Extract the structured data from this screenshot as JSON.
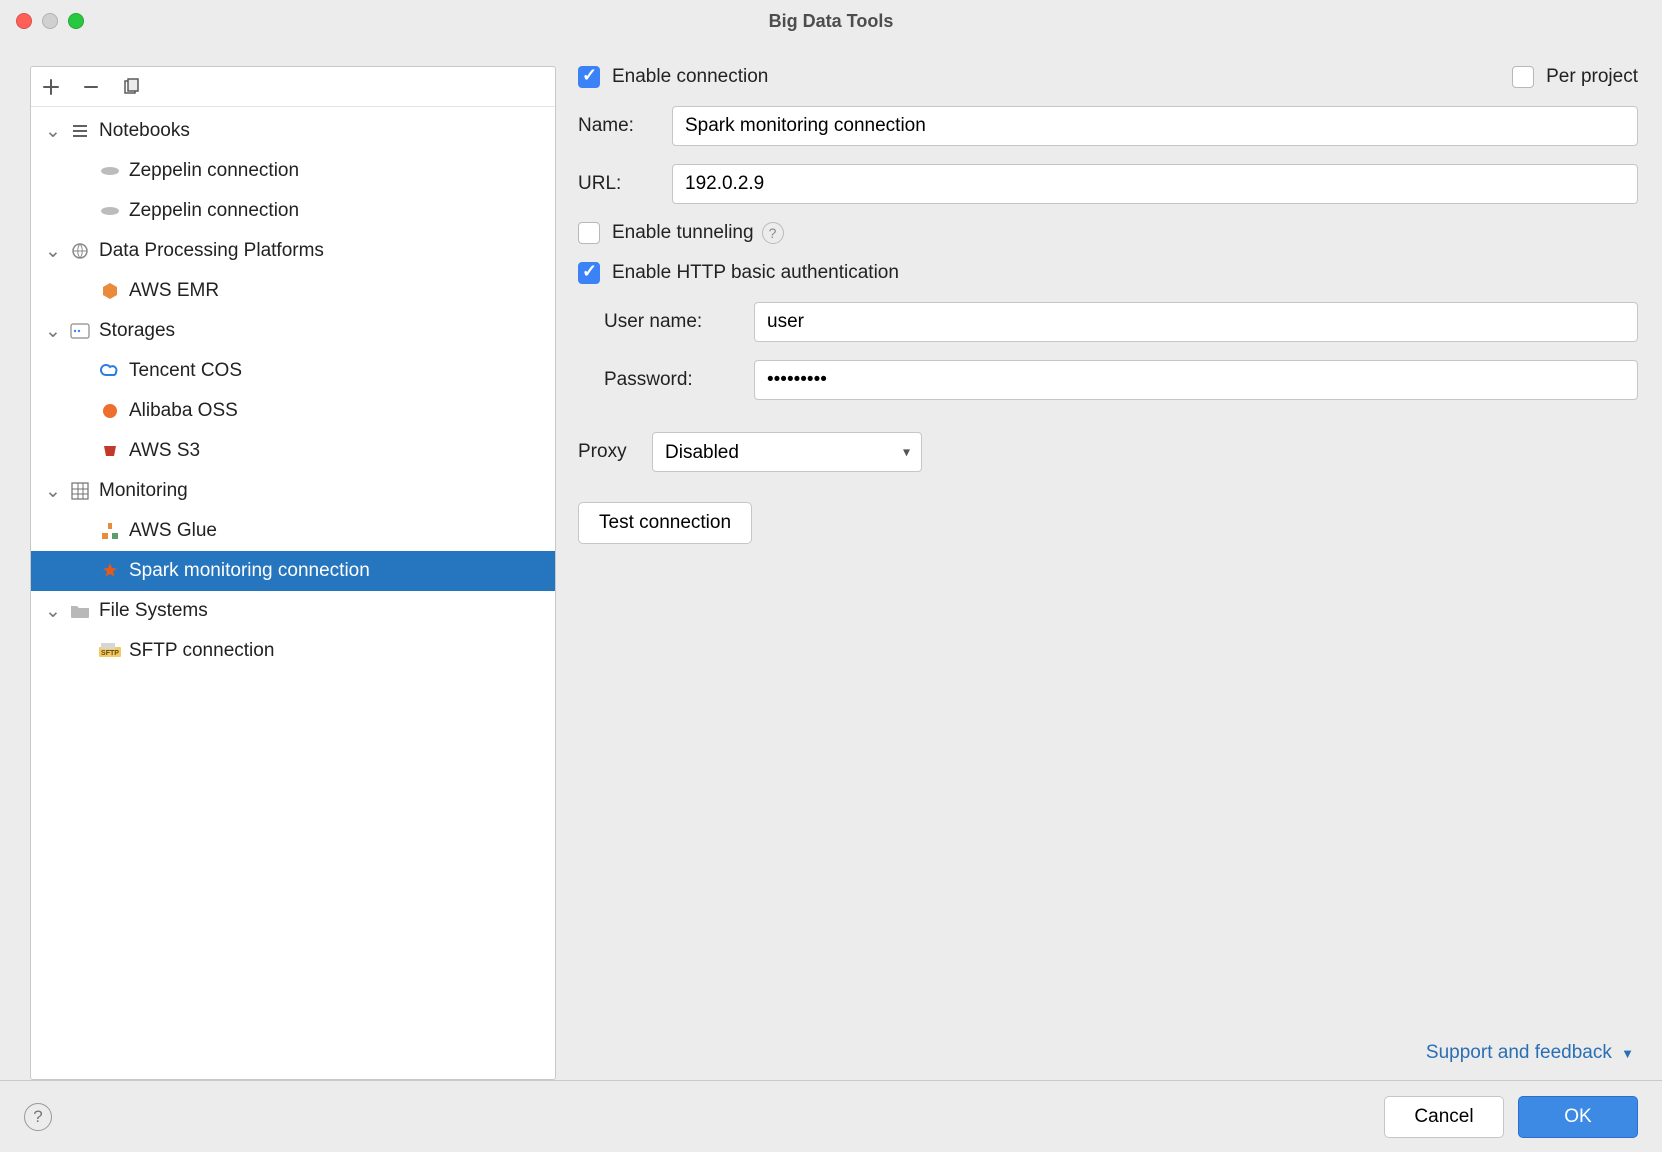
{
  "window": {
    "title": "Big Data Tools"
  },
  "colors": {
    "selection": "#2675bf",
    "accent": "#3d8ae5",
    "link": "#2a6fb5",
    "border": "#c6c6c6",
    "bg": "#ececec"
  },
  "sidebar": {
    "groups": [
      {
        "label": "Notebooks",
        "icon": "lines",
        "items": [
          {
            "label": "Zeppelin connection",
            "icon": "zeppelin"
          },
          {
            "label": "Zeppelin connection",
            "icon": "zeppelin"
          }
        ]
      },
      {
        "label": "Data Processing Platforms",
        "icon": "globe",
        "items": [
          {
            "label": "AWS EMR",
            "icon": "emr"
          }
        ]
      },
      {
        "label": "Storages",
        "icon": "storage",
        "items": [
          {
            "label": "Tencent COS",
            "icon": "cos"
          },
          {
            "label": "Alibaba OSS",
            "icon": "oss"
          },
          {
            "label": "AWS S3",
            "icon": "s3"
          }
        ]
      },
      {
        "label": "Monitoring",
        "icon": "grid",
        "items": [
          {
            "label": "AWS Glue",
            "icon": "glue"
          },
          {
            "label": "Spark monitoring connection",
            "icon": "spark",
            "selected": true
          }
        ]
      },
      {
        "label": "File Systems",
        "icon": "folder",
        "items": [
          {
            "label": "SFTP connection",
            "icon": "sftp"
          }
        ]
      }
    ]
  },
  "form": {
    "enable_connection": {
      "label": "Enable connection",
      "checked": true
    },
    "per_project": {
      "label": "Per project",
      "checked": false
    },
    "name": {
      "label": "Name:",
      "value": "Spark monitoring connection"
    },
    "url": {
      "label": "URL:",
      "value": "192.0.2.9"
    },
    "enable_tunneling": {
      "label": "Enable tunneling",
      "checked": false
    },
    "enable_http_auth": {
      "label": "Enable HTTP basic authentication",
      "checked": true
    },
    "username": {
      "label": "User name:",
      "value": "user"
    },
    "password": {
      "label": "Password:",
      "value": "•••••••••"
    },
    "proxy": {
      "label": "Proxy",
      "value": "Disabled",
      "options": [
        "Disabled"
      ]
    },
    "test_connection": "Test connection",
    "support_link": "Support and feedback"
  },
  "footer": {
    "cancel": "Cancel",
    "ok": "OK"
  }
}
